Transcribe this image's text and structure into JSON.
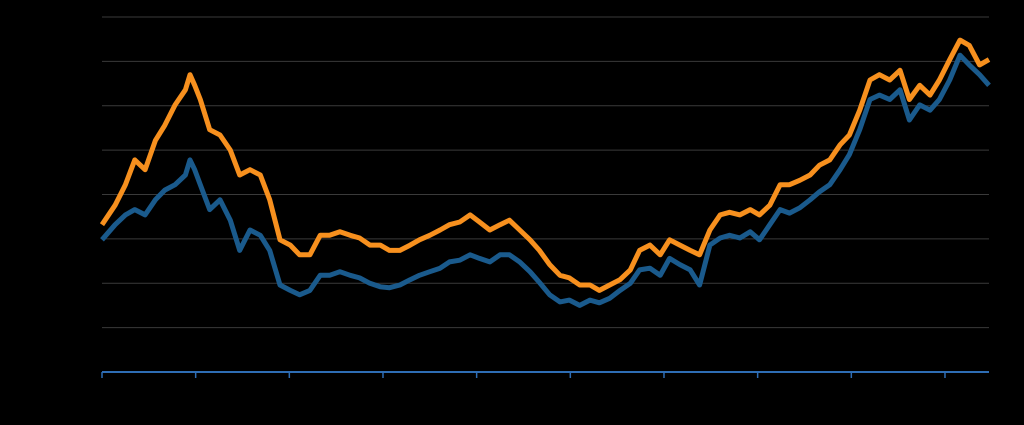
{
  "chart_data": {
    "type": "line",
    "x": [
      0,
      0.14,
      0.25,
      0.35,
      0.46,
      0.57,
      0.67,
      0.78,
      0.89,
      0.94,
      0.99,
      1.05,
      1.15,
      1.26,
      1.37,
      1.47,
      1.58,
      1.69,
      1.79,
      1.9,
      2.01,
      2.11,
      2.22,
      2.33,
      2.43,
      2.54,
      2.65,
      2.75,
      2.86,
      2.97,
      3.07,
      3.18,
      3.29,
      3.39,
      3.5,
      3.61,
      3.71,
      3.82,
      3.93,
      4.03,
      4.14,
      4.25,
      4.35,
      4.46,
      4.57,
      4.67,
      4.78,
      4.89,
      4.99,
      5.1,
      5.21,
      5.31,
      5.42,
      5.53,
      5.64,
      5.74,
      5.85,
      5.96,
      6.06,
      6.17,
      6.28,
      6.38,
      6.49,
      6.6,
      6.7,
      6.81,
      6.92,
      7.02,
      7.13,
      7.24,
      7.34,
      7.45,
      7.56,
      7.66,
      7.77,
      7.88,
      7.98,
      8.09,
      8.2,
      8.3,
      8.41,
      8.52,
      8.62,
      8.73,
      8.84,
      8.94,
      9.05,
      9.16,
      9.26,
      9.37,
      9.47
    ],
    "series": [
      {
        "color": "#f7901e",
        "values": [
          166,
          188,
          211,
          239,
          228,
          261,
          278,
          301,
          318,
          335,
          323,
          307,
          273,
          267,
          250,
          222,
          228,
          222,
          194,
          149,
          143,
          132,
          132,
          154,
          154,
          158,
          154,
          151,
          143,
          143,
          137,
          137,
          143,
          149,
          154,
          160,
          166,
          169,
          177,
          169,
          160,
          166,
          171,
          160,
          149,
          137,
          121,
          109,
          106,
          98,
          98,
          92,
          98,
          104,
          115,
          137,
          143,
          132,
          149,
          143,
          137,
          132,
          160,
          177,
          180,
          177,
          183,
          177,
          188,
          211,
          211,
          216,
          222,
          233,
          239,
          256,
          267,
          295,
          329,
          335,
          329,
          340,
          307,
          323,
          312,
          329,
          352,
          374,
          368,
          346,
          352
        ]
      },
      {
        "color": "#1a5a8c",
        "values": [
          149,
          166,
          177,
          183,
          177,
          194,
          205,
          211,
          222,
          239,
          228,
          211,
          183,
          194,
          171,
          137,
          160,
          154,
          137,
          98,
          92,
          87,
          92,
          109,
          109,
          113,
          109,
          106,
          100,
          96,
          95,
          98,
          104,
          109,
          113,
          117,
          124,
          126,
          132,
          128,
          124,
          132,
          132,
          124,
          113,
          101,
          87,
          79,
          81,
          75,
          81,
          78,
          83,
          92,
          100,
          115,
          117,
          109,
          128,
          121,
          115,
          98,
          143,
          151,
          154,
          151,
          158,
          149,
          166,
          183,
          179,
          185,
          194,
          203,
          211,
          228,
          245,
          273,
          307,
          312,
          307,
          318,
          284,
          301,
          295,
          307,
          329,
          357,
          346,
          335,
          323
        ]
      }
    ],
    "xlim": [
      0,
      9.47
    ],
    "xticks": [
      0,
      1,
      2,
      3,
      4,
      5,
      6,
      7,
      8,
      9
    ],
    "ylim": [
      0,
      400
    ],
    "yticks": [
      0,
      50,
      100,
      150,
      200,
      250,
      300,
      350,
      400
    ],
    "grid": true
  }
}
